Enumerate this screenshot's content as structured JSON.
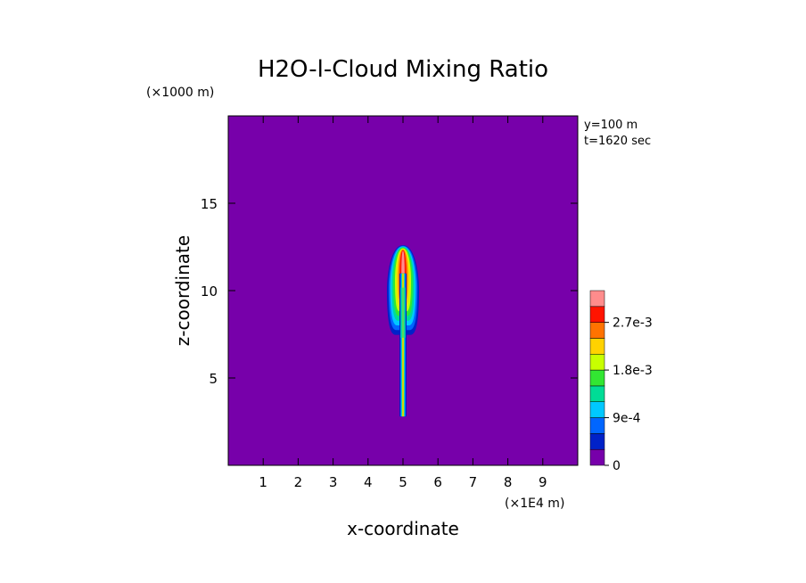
{
  "chart_data": {
    "type": "heatmap",
    "title": "H2O-l-Cloud Mixing Ratio",
    "xlabel": "x-coordinate",
    "ylabel": "z-coordinate",
    "x_unit": "(×1E4 m)",
    "y_unit": "(×1000 m)",
    "annotations": [
      "y=100 m",
      "t=1620 sec"
    ],
    "xlim": [
      0,
      10
    ],
    "ylim": [
      0,
      20
    ],
    "x_ticks": [
      1,
      2,
      3,
      4,
      5,
      6,
      7,
      8,
      9
    ],
    "y_ticks": [
      5,
      10,
      15
    ],
    "background_level": 0,
    "colorbar": {
      "colors": [
        "#7700aa",
        "#0022c8",
        "#0066ff",
        "#00c8ff",
        "#00dc96",
        "#32e632",
        "#c8ff00",
        "#ffd200",
        "#ff7300",
        "#ff1400",
        "#ff8c8c"
      ],
      "tick_labels": [
        "0",
        "9e-4",
        "1.8e-3",
        "2.7e-3"
      ],
      "tick_values": [
        0,
        0.0009,
        0.0018,
        0.0027
      ],
      "level_step": 0.0003
    },
    "plume": {
      "center_x": 5.0,
      "stem_bottom_z": 2.8,
      "top_z": 12.6,
      "lobe_bottom_z": 7.2,
      "max_value": 0.0031
    }
  }
}
